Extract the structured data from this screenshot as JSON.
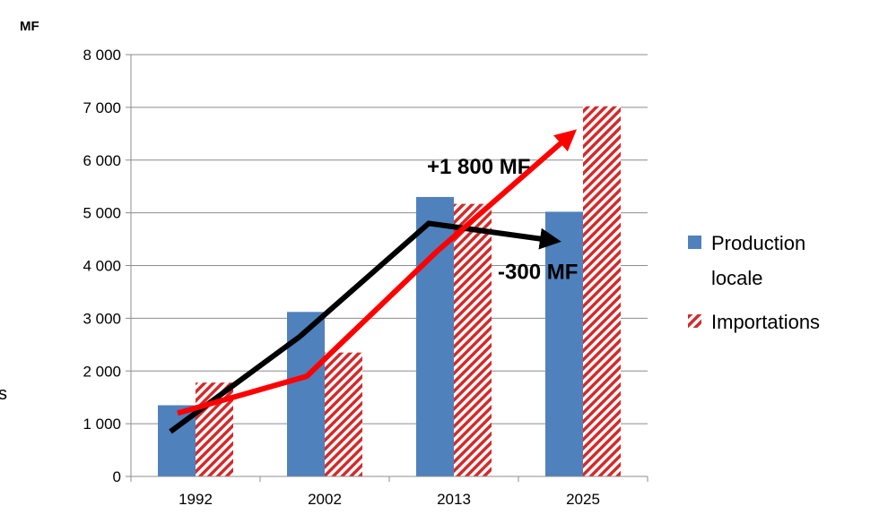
{
  "chart_data": {
    "type": "bar",
    "unit_label": "MF",
    "categories": [
      "1992",
      "2002",
      "2013",
      "2025"
    ],
    "series": [
      {
        "name": "Production locale",
        "values": [
          1350,
          3120,
          5300,
          5020
        ],
        "color": "#4F81BD",
        "pattern": "solid"
      },
      {
        "name": "Importations",
        "values": [
          1780,
          2350,
          5170,
          7020
        ],
        "color": "#D42A2A",
        "pattern": "diagonal-stripes"
      }
    ],
    "ylim": [
      0,
      8000
    ],
    "yticks": [
      0,
      1000,
      2000,
      3000,
      4000,
      5000,
      6000,
      7000,
      8000
    ],
    "ytick_labels": [
      "0",
      "1 000",
      "2 000",
      "3 000",
      "4 000",
      "5 000",
      "6 000",
      "7 000",
      "8 000"
    ],
    "grid": true,
    "legend_placement": "right",
    "trend_lines": [
      {
        "color": "#000000",
        "points": [
          [
            "1992",
            850
          ],
          [
            "2002",
            2650
          ],
          [
            "2013",
            4800
          ],
          [
            "2025",
            4480
          ]
        ],
        "arrow_end": true
      },
      {
        "color": "#FF0000",
        "points": [
          [
            "1992",
            1200
          ],
          [
            "2002",
            1900
          ],
          [
            "2013",
            4250
          ],
          [
            "2025",
            6450
          ]
        ],
        "arrow_end": true
      }
    ],
    "annotations": [
      {
        "text": "+1 800 MF",
        "category": "2013",
        "value": 6000
      },
      {
        "text": "-300 MF",
        "category": "2025",
        "value": 4000
      }
    ],
    "stray_text": "s"
  }
}
